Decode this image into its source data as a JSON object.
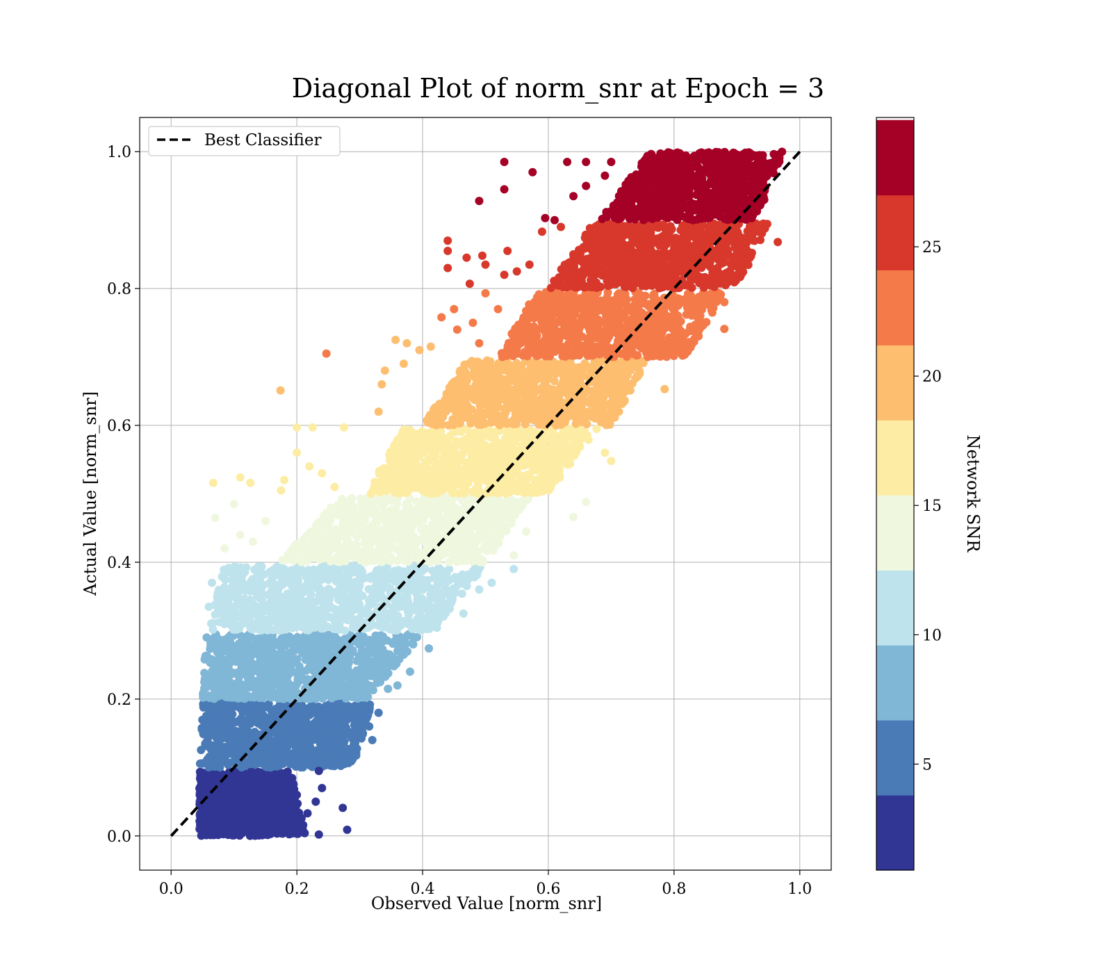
{
  "chart_data": {
    "type": "scatter",
    "title": "Diagonal Plot of norm_snr at Epoch = 3",
    "xlabel": "Observed Value [norm_snr]",
    "ylabel": "Actual Value [norm_snr]",
    "xlim": [
      -0.05,
      1.05
    ],
    "ylim": [
      -0.05,
      1.05
    ],
    "xticks": [
      "0.0",
      "0.2",
      "0.4",
      "0.6",
      "0.8",
      "1.0"
    ],
    "yticks": [
      "0.0",
      "0.2",
      "0.4",
      "0.6",
      "0.8",
      "1.0"
    ],
    "grid": true,
    "legend": {
      "location": "upper-left",
      "entries": [
        "Best Classifier"
      ]
    },
    "reference_line": {
      "name": "Best Classifier",
      "style": "dashed",
      "color": "#000000",
      "x": [
        0,
        1
      ],
      "y": [
        0,
        1
      ]
    },
    "colorbar": {
      "label": "Network SNR",
      "range": [
        0.9,
        30.0
      ],
      "ticks": [
        "5",
        "10",
        "15",
        "20",
        "25"
      ],
      "tick_values": [
        5,
        10,
        15,
        20,
        25
      ],
      "bins": [
        {
          "from": 0.9,
          "to": 3.8,
          "color": "#313695"
        },
        {
          "from": 3.8,
          "to": 6.7,
          "color": "#4a7bb7"
        },
        {
          "from": 6.7,
          "to": 9.6,
          "color": "#80b6d6"
        },
        {
          "from": 9.6,
          "to": 12.5,
          "color": "#bfe3ec"
        },
        {
          "from": 12.5,
          "to": 15.4,
          "color": "#eff8df"
        },
        {
          "from": 15.4,
          "to": 18.3,
          "color": "#fdeda4"
        },
        {
          "from": 18.3,
          "to": 21.2,
          "color": "#fdbe70"
        },
        {
          "from": 21.2,
          "to": 24.1,
          "color": "#f57a4a"
        },
        {
          "from": 24.1,
          "to": 27.0,
          "color": "#d8382b"
        },
        {
          "from": 27.0,
          "to": 29.9,
          "color": "#a50026"
        }
      ]
    },
    "bands": [
      {
        "y_from": 0.0,
        "y_to": 0.095,
        "x_left_bottom": 0.045,
        "x_left_top": 0.045,
        "x_right_bottom": 0.215,
        "x_right_top": 0.19,
        "color": "#313695"
      },
      {
        "y_from": 0.1,
        "y_to": 0.195,
        "x_left_bottom": 0.045,
        "x_left_top": 0.05,
        "x_right_bottom": 0.29,
        "x_right_top": 0.32,
        "color": "#4a7bb7"
      },
      {
        "y_from": 0.2,
        "y_to": 0.295,
        "x_left_bottom": 0.05,
        "x_left_top": 0.055,
        "x_right_bottom": 0.31,
        "x_right_top": 0.4,
        "color": "#80b6d6"
      },
      {
        "y_from": 0.3,
        "y_to": 0.395,
        "x_left_bottom": 0.06,
        "x_left_top": 0.08,
        "x_right_bottom": 0.42,
        "x_right_top": 0.5,
        "color": "#bfe3ec"
      },
      {
        "y_from": 0.4,
        "y_to": 0.495,
        "x_left_bottom": 0.17,
        "x_left_top": 0.27,
        "x_right_bottom": 0.5,
        "x_right_top": 0.57,
        "color": "#eff8df"
      },
      {
        "y_from": 0.5,
        "y_to": 0.595,
        "x_left_bottom": 0.31,
        "x_left_top": 0.37,
        "x_right_bottom": 0.6,
        "x_right_top": 0.68,
        "color": "#fdeda4"
      },
      {
        "y_from": 0.6,
        "y_to": 0.695,
        "x_left_bottom": 0.4,
        "x_left_top": 0.47,
        "x_right_bottom": 0.7,
        "x_right_top": 0.76,
        "color": "#fdbe70"
      },
      {
        "y_from": 0.7,
        "y_to": 0.795,
        "x_left_bottom": 0.52,
        "x_left_top": 0.58,
        "x_right_bottom": 0.82,
        "x_right_top": 0.88,
        "color": "#f57a4a"
      },
      {
        "y_from": 0.8,
        "y_to": 0.895,
        "x_left_bottom": 0.6,
        "x_left_top": 0.67,
        "x_right_bottom": 0.9,
        "x_right_top": 0.95,
        "color": "#d8382b"
      },
      {
        "y_from": 0.9,
        "y_to": 1.0,
        "x_left_bottom": 0.68,
        "x_left_top": 0.76,
        "x_right_bottom": 0.93,
        "x_right_top": 0.975,
        "color": "#a50026"
      }
    ],
    "outliers": [
      {
        "x": 0.53,
        "y": 0.985,
        "c": "#a50026"
      },
      {
        "x": 0.575,
        "y": 0.97,
        "c": "#a50026"
      },
      {
        "x": 0.63,
        "y": 0.985,
        "c": "#a50026"
      },
      {
        "x": 0.66,
        "y": 0.985,
        "c": "#a50026"
      },
      {
        "x": 0.53,
        "y": 0.945,
        "c": "#a50026"
      },
      {
        "x": 0.49,
        "y": 0.928,
        "c": "#a50026"
      },
      {
        "x": 0.64,
        "y": 0.935,
        "c": "#a50026"
      },
      {
        "x": 0.66,
        "y": 0.95,
        "c": "#a50026"
      },
      {
        "x": 0.595,
        "y": 0.903,
        "c": "#a50026"
      },
      {
        "x": 0.61,
        "y": 0.9,
        "c": "#a50026"
      },
      {
        "x": 0.69,
        "y": 0.965,
        "c": "#a50026"
      },
      {
        "x": 0.7,
        "y": 0.985,
        "c": "#a50026"
      },
      {
        "x": 0.44,
        "y": 0.87,
        "c": "#d8382b"
      },
      {
        "x": 0.44,
        "y": 0.855,
        "c": "#d8382b"
      },
      {
        "x": 0.47,
        "y": 0.845,
        "c": "#d8382b"
      },
      {
        "x": 0.495,
        "y": 0.848,
        "c": "#d8382b"
      },
      {
        "x": 0.5,
        "y": 0.835,
        "c": "#d8382b"
      },
      {
        "x": 0.535,
        "y": 0.855,
        "c": "#d8382b"
      },
      {
        "x": 0.44,
        "y": 0.83,
        "c": "#d8382b"
      },
      {
        "x": 0.475,
        "y": 0.807,
        "c": "#d8382b"
      },
      {
        "x": 0.59,
        "y": 0.883,
        "c": "#d8382b"
      },
      {
        "x": 0.62,
        "y": 0.89,
        "c": "#d8382b"
      },
      {
        "x": 0.53,
        "y": 0.82,
        "c": "#d8382b"
      },
      {
        "x": 0.55,
        "y": 0.825,
        "c": "#d8382b"
      },
      {
        "x": 0.965,
        "y": 0.868,
        "c": "#d8382b"
      },
      {
        "x": 0.57,
        "y": 0.835,
        "c": "#d8382b"
      },
      {
        "x": 0.247,
        "y": 0.705,
        "c": "#f57a4a"
      },
      {
        "x": 0.43,
        "y": 0.758,
        "c": "#f57a4a"
      },
      {
        "x": 0.45,
        "y": 0.77,
        "c": "#f57a4a"
      },
      {
        "x": 0.5,
        "y": 0.793,
        "c": "#f57a4a"
      },
      {
        "x": 0.52,
        "y": 0.77,
        "c": "#f57a4a"
      },
      {
        "x": 0.455,
        "y": 0.74,
        "c": "#f57a4a"
      },
      {
        "x": 0.88,
        "y": 0.741,
        "c": "#f57a4a"
      },
      {
        "x": 0.88,
        "y": 0.78,
        "c": "#f57a4a"
      },
      {
        "x": 0.48,
        "y": 0.75,
        "c": "#f57a4a"
      },
      {
        "x": 0.49,
        "y": 0.72,
        "c": "#f57a4a"
      },
      {
        "x": 0.174,
        "y": 0.651,
        "c": "#fdbe70"
      },
      {
        "x": 0.357,
        "y": 0.725,
        "c": "#fdbe70"
      },
      {
        "x": 0.375,
        "y": 0.72,
        "c": "#fdbe70"
      },
      {
        "x": 0.413,
        "y": 0.715,
        "c": "#fdbe70"
      },
      {
        "x": 0.34,
        "y": 0.68,
        "c": "#fdbe70"
      },
      {
        "x": 0.37,
        "y": 0.69,
        "c": "#fdbe70"
      },
      {
        "x": 0.395,
        "y": 0.71,
        "c": "#fdbe70"
      },
      {
        "x": 0.335,
        "y": 0.66,
        "c": "#fdbe70"
      },
      {
        "x": 0.785,
        "y": 0.653,
        "c": "#fdbe70"
      },
      {
        "x": 0.33,
        "y": 0.62,
        "c": "#fdbe70"
      },
      {
        "x": 0.067,
        "y": 0.516,
        "c": "#fdeda4"
      },
      {
        "x": 0.11,
        "y": 0.524,
        "c": "#fdeda4"
      },
      {
        "x": 0.126,
        "y": 0.516,
        "c": "#fdeda4"
      },
      {
        "x": 0.18,
        "y": 0.52,
        "c": "#fdeda4"
      },
      {
        "x": 0.2,
        "y": 0.56,
        "c": "#fdeda4"
      },
      {
        "x": 0.22,
        "y": 0.54,
        "c": "#fdeda4"
      },
      {
        "x": 0.2,
        "y": 0.597,
        "c": "#fdeda4"
      },
      {
        "x": 0.225,
        "y": 0.597,
        "c": "#fdeda4"
      },
      {
        "x": 0.275,
        "y": 0.597,
        "c": "#fdeda4"
      },
      {
        "x": 0.175,
        "y": 0.505,
        "c": "#fdeda4"
      },
      {
        "x": 0.24,
        "y": 0.53,
        "c": "#fdeda4"
      },
      {
        "x": 0.26,
        "y": 0.51,
        "c": "#fdeda4"
      },
      {
        "x": 0.7,
        "y": 0.548,
        "c": "#fdeda4"
      },
      {
        "x": 0.69,
        "y": 0.56,
        "c": "#fdeda4"
      },
      {
        "x": 0.07,
        "y": 0.465,
        "c": "#eff8df"
      },
      {
        "x": 0.1,
        "y": 0.485,
        "c": "#eff8df"
      },
      {
        "x": 0.085,
        "y": 0.42,
        "c": "#eff8df"
      },
      {
        "x": 0.11,
        "y": 0.44,
        "c": "#eff8df"
      },
      {
        "x": 0.13,
        "y": 0.43,
        "c": "#eff8df"
      },
      {
        "x": 0.15,
        "y": 0.46,
        "c": "#eff8df"
      },
      {
        "x": 0.64,
        "y": 0.466,
        "c": "#eff8df"
      },
      {
        "x": 0.66,
        "y": 0.488,
        "c": "#eff8df"
      },
      {
        "x": 0.565,
        "y": 0.445,
        "c": "#eff8df"
      },
      {
        "x": 0.545,
        "y": 0.41,
        "c": "#eff8df"
      },
      {
        "x": 0.06,
        "y": 0.335,
        "c": "#bfe3ec"
      },
      {
        "x": 0.065,
        "y": 0.37,
        "c": "#bfe3ec"
      },
      {
        "x": 0.51,
        "y": 0.37,
        "c": "#bfe3ec"
      },
      {
        "x": 0.545,
        "y": 0.39,
        "c": "#bfe3ec"
      },
      {
        "x": 0.465,
        "y": 0.325,
        "c": "#bfe3ec"
      },
      {
        "x": 0.43,
        "y": 0.34,
        "c": "#bfe3ec"
      },
      {
        "x": 0.41,
        "y": 0.31,
        "c": "#bfe3ec"
      },
      {
        "x": 0.49,
        "y": 0.36,
        "c": "#bfe3ec"
      },
      {
        "x": 0.37,
        "y": 0.265,
        "c": "#80b6d6"
      },
      {
        "x": 0.385,
        "y": 0.28,
        "c": "#80b6d6"
      },
      {
        "x": 0.41,
        "y": 0.274,
        "c": "#80b6d6"
      },
      {
        "x": 0.38,
        "y": 0.24,
        "c": "#80b6d6"
      },
      {
        "x": 0.36,
        "y": 0.22,
        "c": "#80b6d6"
      },
      {
        "x": 0.345,
        "y": 0.215,
        "c": "#80b6d6"
      },
      {
        "x": 0.32,
        "y": 0.14,
        "c": "#4a7bb7"
      },
      {
        "x": 0.291,
        "y": 0.136,
        "c": "#4a7bb7"
      },
      {
        "x": 0.315,
        "y": 0.16,
        "c": "#4a7bb7"
      },
      {
        "x": 0.3,
        "y": 0.155,
        "c": "#4a7bb7"
      },
      {
        "x": 0.33,
        "y": 0.18,
        "c": "#4a7bb7"
      },
      {
        "x": 0.26,
        "y": 0.12,
        "c": "#4a7bb7"
      },
      {
        "x": 0.28,
        "y": 0.009,
        "c": "#313695"
      },
      {
        "x": 0.273,
        "y": 0.041,
        "c": "#313695"
      },
      {
        "x": 0.235,
        "y": 0.002,
        "c": "#313695"
      },
      {
        "x": 0.217,
        "y": 0.033,
        "c": "#313695"
      },
      {
        "x": 0.235,
        "y": 0.095,
        "c": "#313695"
      },
      {
        "x": 0.24,
        "y": 0.07,
        "c": "#313695"
      },
      {
        "x": 0.2,
        "y": 0.06,
        "c": "#313695"
      },
      {
        "x": 0.23,
        "y": 0.05,
        "c": "#313695"
      }
    ]
  }
}
